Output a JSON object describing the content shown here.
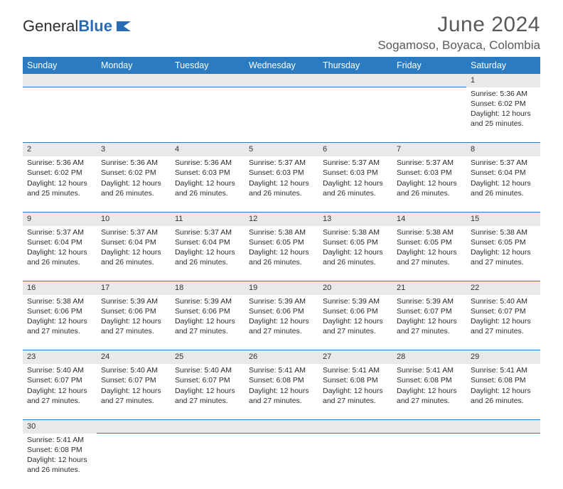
{
  "logo": {
    "part1": "General",
    "part2": "Blue"
  },
  "title": "June 2024",
  "location": "Sogamoso, Boyaca, Colombia",
  "colors": {
    "header_bg": "#2a7bbf",
    "header_text": "#ffffff",
    "daynum_bg": "#e9e9e9",
    "rule": "#2a7bbf",
    "text": "#2b2b2b",
    "title_text": "#5a5a5a"
  },
  "day_headers": [
    "Sunday",
    "Monday",
    "Tuesday",
    "Wednesday",
    "Thursday",
    "Friday",
    "Saturday"
  ],
  "weeks": [
    [
      null,
      null,
      null,
      null,
      null,
      null,
      {
        "n": "1",
        "sr": "Sunrise: 5:36 AM",
        "ss": "Sunset: 6:02 PM",
        "d1": "Daylight: 12 hours",
        "d2": "and 25 minutes."
      }
    ],
    [
      {
        "n": "2",
        "sr": "Sunrise: 5:36 AM",
        "ss": "Sunset: 6:02 PM",
        "d1": "Daylight: 12 hours",
        "d2": "and 25 minutes."
      },
      {
        "n": "3",
        "sr": "Sunrise: 5:36 AM",
        "ss": "Sunset: 6:02 PM",
        "d1": "Daylight: 12 hours",
        "d2": "and 26 minutes."
      },
      {
        "n": "4",
        "sr": "Sunrise: 5:36 AM",
        "ss": "Sunset: 6:03 PM",
        "d1": "Daylight: 12 hours",
        "d2": "and 26 minutes."
      },
      {
        "n": "5",
        "sr": "Sunrise: 5:37 AM",
        "ss": "Sunset: 6:03 PM",
        "d1": "Daylight: 12 hours",
        "d2": "and 26 minutes."
      },
      {
        "n": "6",
        "sr": "Sunrise: 5:37 AM",
        "ss": "Sunset: 6:03 PM",
        "d1": "Daylight: 12 hours",
        "d2": "and 26 minutes."
      },
      {
        "n": "7",
        "sr": "Sunrise: 5:37 AM",
        "ss": "Sunset: 6:03 PM",
        "d1": "Daylight: 12 hours",
        "d2": "and 26 minutes."
      },
      {
        "n": "8",
        "sr": "Sunrise: 5:37 AM",
        "ss": "Sunset: 6:04 PM",
        "d1": "Daylight: 12 hours",
        "d2": "and 26 minutes."
      }
    ],
    [
      {
        "n": "9",
        "sr": "Sunrise: 5:37 AM",
        "ss": "Sunset: 6:04 PM",
        "d1": "Daylight: 12 hours",
        "d2": "and 26 minutes."
      },
      {
        "n": "10",
        "sr": "Sunrise: 5:37 AM",
        "ss": "Sunset: 6:04 PM",
        "d1": "Daylight: 12 hours",
        "d2": "and 26 minutes."
      },
      {
        "n": "11",
        "sr": "Sunrise: 5:37 AM",
        "ss": "Sunset: 6:04 PM",
        "d1": "Daylight: 12 hours",
        "d2": "and 26 minutes."
      },
      {
        "n": "12",
        "sr": "Sunrise: 5:38 AM",
        "ss": "Sunset: 6:05 PM",
        "d1": "Daylight: 12 hours",
        "d2": "and 26 minutes."
      },
      {
        "n": "13",
        "sr": "Sunrise: 5:38 AM",
        "ss": "Sunset: 6:05 PM",
        "d1": "Daylight: 12 hours",
        "d2": "and 26 minutes."
      },
      {
        "n": "14",
        "sr": "Sunrise: 5:38 AM",
        "ss": "Sunset: 6:05 PM",
        "d1": "Daylight: 12 hours",
        "d2": "and 27 minutes."
      },
      {
        "n": "15",
        "sr": "Sunrise: 5:38 AM",
        "ss": "Sunset: 6:05 PM",
        "d1": "Daylight: 12 hours",
        "d2": "and 27 minutes."
      }
    ],
    [
      {
        "n": "16",
        "sr": "Sunrise: 5:38 AM",
        "ss": "Sunset: 6:06 PM",
        "d1": "Daylight: 12 hours",
        "d2": "and 27 minutes."
      },
      {
        "n": "17",
        "sr": "Sunrise: 5:39 AM",
        "ss": "Sunset: 6:06 PM",
        "d1": "Daylight: 12 hours",
        "d2": "and 27 minutes."
      },
      {
        "n": "18",
        "sr": "Sunrise: 5:39 AM",
        "ss": "Sunset: 6:06 PM",
        "d1": "Daylight: 12 hours",
        "d2": "and 27 minutes."
      },
      {
        "n": "19",
        "sr": "Sunrise: 5:39 AM",
        "ss": "Sunset: 6:06 PM",
        "d1": "Daylight: 12 hours",
        "d2": "and 27 minutes."
      },
      {
        "n": "20",
        "sr": "Sunrise: 5:39 AM",
        "ss": "Sunset: 6:06 PM",
        "d1": "Daylight: 12 hours",
        "d2": "and 27 minutes."
      },
      {
        "n": "21",
        "sr": "Sunrise: 5:39 AM",
        "ss": "Sunset: 6:07 PM",
        "d1": "Daylight: 12 hours",
        "d2": "and 27 minutes."
      },
      {
        "n": "22",
        "sr": "Sunrise: 5:40 AM",
        "ss": "Sunset: 6:07 PM",
        "d1": "Daylight: 12 hours",
        "d2": "and 27 minutes."
      }
    ],
    [
      {
        "n": "23",
        "sr": "Sunrise: 5:40 AM",
        "ss": "Sunset: 6:07 PM",
        "d1": "Daylight: 12 hours",
        "d2": "and 27 minutes."
      },
      {
        "n": "24",
        "sr": "Sunrise: 5:40 AM",
        "ss": "Sunset: 6:07 PM",
        "d1": "Daylight: 12 hours",
        "d2": "and 27 minutes."
      },
      {
        "n": "25",
        "sr": "Sunrise: 5:40 AM",
        "ss": "Sunset: 6:07 PM",
        "d1": "Daylight: 12 hours",
        "d2": "and 27 minutes."
      },
      {
        "n": "26",
        "sr": "Sunrise: 5:41 AM",
        "ss": "Sunset: 6:08 PM",
        "d1": "Daylight: 12 hours",
        "d2": "and 27 minutes."
      },
      {
        "n": "27",
        "sr": "Sunrise: 5:41 AM",
        "ss": "Sunset: 6:08 PM",
        "d1": "Daylight: 12 hours",
        "d2": "and 27 minutes."
      },
      {
        "n": "28",
        "sr": "Sunrise: 5:41 AM",
        "ss": "Sunset: 6:08 PM",
        "d1": "Daylight: 12 hours",
        "d2": "and 27 minutes."
      },
      {
        "n": "29",
        "sr": "Sunrise: 5:41 AM",
        "ss": "Sunset: 6:08 PM",
        "d1": "Daylight: 12 hours",
        "d2": "and 26 minutes."
      }
    ],
    [
      {
        "n": "30",
        "sr": "Sunrise: 5:41 AM",
        "ss": "Sunset: 6:08 PM",
        "d1": "Daylight: 12 hours",
        "d2": "and 26 minutes."
      },
      null,
      null,
      null,
      null,
      null,
      null
    ]
  ]
}
